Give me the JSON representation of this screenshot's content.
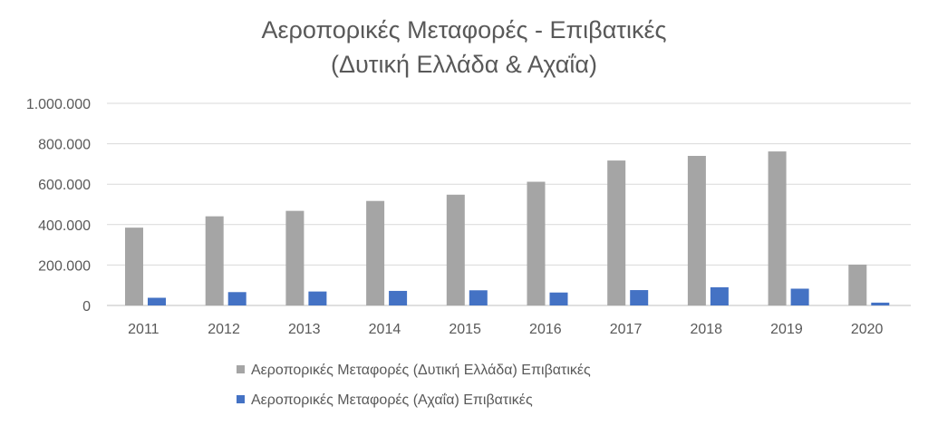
{
  "chart_data": {
    "type": "bar",
    "title": [
      "Αεροπορικές Μεταφορές - Επιβατικές",
      "(Δυτική Ελλάδα & Αχαΐα)"
    ],
    "categories": [
      "2011",
      "2012",
      "2013",
      "2014",
      "2015",
      "2016",
      "2017",
      "2018",
      "2019",
      "2020"
    ],
    "series": [
      {
        "name": "Αεροπορικές Μεταφορές (Δυτική Ελλάδα) Επιβατικές",
        "color": "#a5a5a5",
        "values": [
          385000,
          441000,
          468000,
          517000,
          548000,
          612000,
          717000,
          740000,
          762000,
          202000
        ]
      },
      {
        "name": "Αεροπορικές Μεταφορές (Αχαΐα) Επιβατικές",
        "color": "#4472c4",
        "values": [
          38000,
          66000,
          69000,
          72000,
          75000,
          64000,
          76000,
          90000,
          83000,
          14000
        ]
      }
    ],
    "y_ticks": [
      "0",
      "200.000",
      "400.000",
      "600.000",
      "800.000",
      "1.000.000"
    ],
    "ylim": [
      0,
      1000000
    ],
    "grid": true,
    "legend_position": "bottom"
  }
}
